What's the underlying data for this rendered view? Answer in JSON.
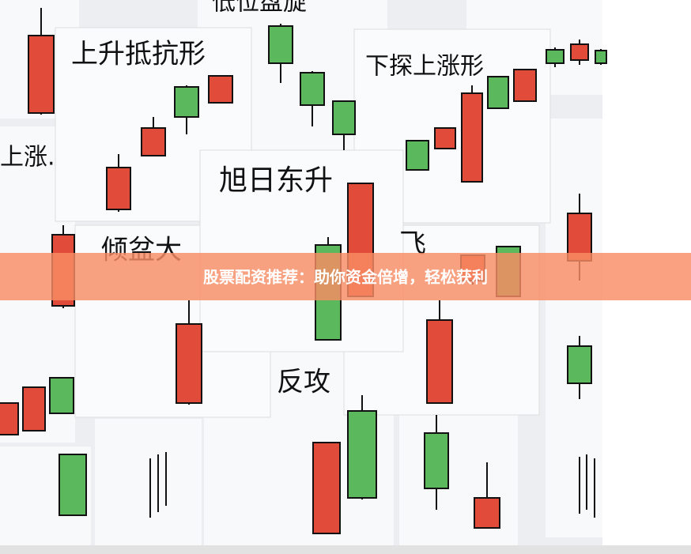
{
  "cards": {
    "top_partial": "低位盘旋",
    "rising_resistance": "上升抵抗形",
    "dip_then_rise": "下探上涨形",
    "left_partial": "上涨.",
    "rising_sun": "旭日东升",
    "downpour_partial": "倾盆大",
    "fly_partial": "飞",
    "counterattack_partial": "反攻"
  },
  "banner": {
    "text": "股票配资推荐：助你资金倍增，轻松获利"
  }
}
